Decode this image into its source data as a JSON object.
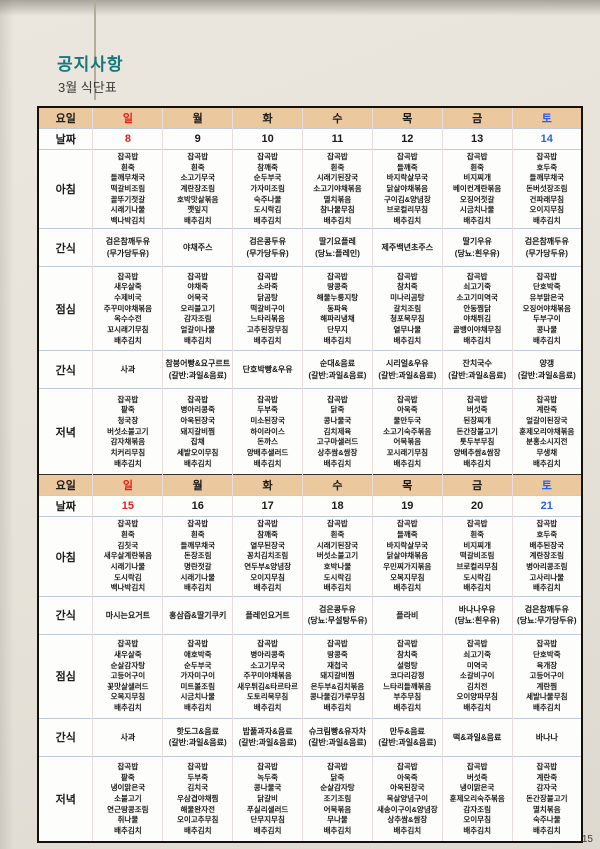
{
  "page": {
    "title": "공지사항",
    "subtitle": "3월 식단표",
    "page_number": "15"
  },
  "colors": {
    "accent_teal": "#15787a",
    "sunday_red": "#e5211c",
    "saturday_blue": "#2563eb",
    "header_tan": "#ecc89e"
  },
  "table": {
    "day_header_label": "요일",
    "date_header_label": "날짜",
    "days": [
      "일",
      "월",
      "화",
      "수",
      "목",
      "금",
      "토"
    ],
    "weeks": [
      {
        "dates": [
          "8",
          "9",
          "10",
          "11",
          "12",
          "13",
          "14"
        ],
        "meals": [
          {
            "label": "아침",
            "type": "meal",
            "cells": [
              [
                "잡곡밥",
                "흰죽",
                "들깨무채국",
                "떡갈비조림",
                "꼴뚜기젓갈",
                "시래기나물",
                "백나박김치"
              ],
              [
                "잡곡밥",
                "흰죽",
                "소고기무국",
                "계란장조림",
                "호박맛살볶음",
                "깻잎지",
                "배추김치"
              ],
              [
                "잡곡밥",
                "참깨죽",
                "순두부국",
                "가자미조림",
                "숙주나물",
                "도시락김",
                "배추김치"
              ],
              [
                "잡곡밥",
                "흰죽",
                "시래기된장국",
                "소고기야채볶음",
                "멸치볶음",
                "참나물무침",
                "배추김치"
              ],
              [
                "잡곡밥",
                "들깨죽",
                "바지락살무국",
                "닭살야채볶음",
                "구이김&양념장",
                "브로컬리무침",
                "배추김치"
              ],
              [
                "잡곡밥",
                "흰죽",
                "비지찌개",
                "베이컨계란볶음",
                "오징어젓갈",
                "시금치나물",
                "배추김치"
              ],
              [
                "잡곡밥",
                "호두죽",
                "들깨무채국",
                "돈버섯장조림",
                "건파래무침",
                "오이지무침",
                "배추김치"
              ]
            ]
          },
          {
            "label": "간식",
            "type": "snack",
            "cells": [
              [
                "검은참깨두유",
                "(무가당두유)"
              ],
              [
                "야채주스"
              ],
              [
                "검은콩두유",
                "(무가당두유)"
              ],
              [
                "딸기요플레",
                "(당뇨:플레인)"
              ],
              [
                "제주백년초주스"
              ],
              [
                "딸기우유",
                "(당뇨:흰우유)"
              ],
              [
                "검은참깨두유",
                "(무가당두유)"
              ]
            ]
          },
          {
            "label": "점심",
            "type": "meal",
            "cells": [
              [
                "잡곡밥",
                "새우살죽",
                "수제비국",
                "주꾸미야채볶음",
                "옥수수전",
                "꼬시래기무침",
                "배추김치"
              ],
              [
                "잡곡밥",
                "야채죽",
                "어묵국",
                "오리불고기",
                "감자조림",
                "얼갈이나물",
                "배추김치"
              ],
              [
                "잡곡밥",
                "소라죽",
                "닭곰탕",
                "떡갈비구이",
                "느타리볶음",
                "고추된장무침",
                "배추김치"
              ],
              [
                "잡곡밥",
                "땅콩죽",
                "해물누룽지탕",
                "동파육",
                "해파리냉채",
                "단무지",
                "배추김치"
              ],
              [
                "잡곡밥",
                "참치죽",
                "미나리곰탕",
                "갈치조림",
                "청포묵무침",
                "열무나물",
                "배추김치"
              ],
              [
                "잡곡밥",
                "쇠고기죽",
                "소고기미역국",
                "안동찜닭",
                "야채튀김",
                "골뱅이야채무침",
                "배추김치"
              ],
              [
                "잡곡밥",
                "단호박죽",
                "유부맑은국",
                "오징어야채볶음",
                "두부구이",
                "콩나물",
                "배추김치"
              ]
            ]
          },
          {
            "label": "간식",
            "type": "snack",
            "cells": [
              [
                "사과"
              ],
              [
                "참붕어빵&요구르트",
                "(갈반:과일&음료)"
              ],
              [
                "단호박빵&우유"
              ],
              [
                "순대&음료",
                "(갈반:과일&음료)"
              ],
              [
                "시리얼&우유",
                "(갈반:과일&음료)"
              ],
              [
                "잔치국수",
                "(갈반:과일&음료)"
              ],
              [
                "양갱",
                "(갈반:과일&음료)"
              ]
            ]
          },
          {
            "label": "저녁",
            "type": "meal",
            "cells": [
              [
                "잡곡밥",
                "팥죽",
                "청국장",
                "버섯소불고기",
                "감자채볶음",
                "치커리무침",
                "배추김치"
              ],
              [
                "잡곡밥",
                "병아리콩죽",
                "아욱된장국",
                "돼지갈비찜",
                "잡채",
                "세발오이무침",
                "배추김치"
              ],
              [
                "잡곡밥",
                "두부죽",
                "미소된장국",
                "하이라이스",
                "돈까스",
                "양배추샐러드",
                "배추김치"
              ],
              [
                "잡곡밥",
                "닭죽",
                "콩나물국",
                "김치제육",
                "고구마샐러드",
                "상추쌈&쌈장",
                "배추김치"
              ],
              [
                "잡곡밥",
                "아욱죽",
                "물만두국",
                "소고기숙주볶음",
                "어묵볶음",
                "꼬시래기무침",
                "배추김치"
              ],
              [
                "잡곡밥",
                "버섯죽",
                "된장찌개",
                "돈간장불고기",
                "톳두부무침",
                "양배추쌈&쌈장",
                "배추김치"
              ],
              [
                "잡곡밥",
                "계란죽",
                "얼갈이된장국",
                "훈제오리야채볶음",
                "분홍소시지전",
                "무생채",
                "배추김치"
              ]
            ]
          }
        ]
      },
      {
        "dates": [
          "15",
          "16",
          "17",
          "18",
          "19",
          "20",
          "21"
        ],
        "meals": [
          {
            "label": "아침",
            "type": "meal",
            "cells": [
              [
                "잡곡밥",
                "흰죽",
                "김칫국",
                "새우살계란볶음",
                "시래기나물",
                "도시락김",
                "백나박김치"
              ],
              [
                "잡곡밥",
                "흰죽",
                "들깨무채국",
                "돈장조림",
                "명란젓갈",
                "시래기나물",
                "배추김치"
              ],
              [
                "잡곡밥",
                "참깨죽",
                "열무된장국",
                "꽁치김치조림",
                "연두부&양념장",
                "오이지무침",
                "배추김치"
              ],
              [
                "잡곡밥",
                "흰죽",
                "시래기된장국",
                "버섯소불고기",
                "호박나물",
                "도시락김",
                "배추김치"
              ],
              [
                "잡곡밥",
                "들깨죽",
                "바지락살무국",
                "닭살야채볶음",
                "우민찌가지볶음",
                "오복지무침",
                "배추김치"
              ],
              [
                "잡곡밥",
                "흰죽",
                "비지찌개",
                "떡갈비조림",
                "브로컬리무침",
                "도시락김",
                "배추김치"
              ],
              [
                "잡곡밥",
                "호두죽",
                "배추된장국",
                "계란장조림",
                "병아리콩조림",
                "고사리나물",
                "배추김치"
              ]
            ]
          },
          {
            "label": "간식",
            "type": "snack",
            "cells": [
              [
                "마시는요거트"
              ],
              [
                "홍삼즙&딸기쿠키"
              ],
              [
                "플레인요거트"
              ],
              [
                "검은콩두유",
                "(당뇨:무설탕두유)"
              ],
              [
                "플라비"
              ],
              [
                "바나나우유",
                "(당뇨:흰우유)"
              ],
              [
                "검은참깨두유",
                "(당뇨:무가당두유)"
              ]
            ]
          },
          {
            "label": "점심",
            "type": "meal",
            "cells": [
              [
                "잡곡밥",
                "새우살죽",
                "순살감자탕",
                "고등어구이",
                "꽃맛살샐러드",
                "오복지무침",
                "배추김치"
              ],
              [
                "잡곡밥",
                "애호박죽",
                "순두부국",
                "가자미구이",
                "미트볼조림",
                "시금치나물",
                "배추김치"
              ],
              [
                "잡곡밥",
                "병아리콩죽",
                "소고기무국",
                "주꾸미야채볶음",
                "새우튀김&타르타르",
                "도토리묵무침",
                "배추김치"
              ],
              [
                "잡곡밥",
                "땅콩죽",
                "재첩국",
                "돼지갈비찜",
                "온두부&김치볶음",
                "콩나물김가루무침",
                "배추김치"
              ],
              [
                "잡곡밥",
                "참치죽",
                "설렁탕",
                "코다리강정",
                "느타리들깨볶음",
                "부추무침",
                "배추김치"
              ],
              [
                "잡곡밥",
                "쇠고기죽",
                "미역국",
                "소갈비구이",
                "김치전",
                "오이양파무침",
                "배추김치"
              ],
              [
                "잡곡밥",
                "단호박죽",
                "육개장",
                "고등어구이",
                "계란찜",
                "세발나물무침",
                "배추김치"
              ]
            ]
          },
          {
            "label": "간식",
            "type": "snack",
            "cells": [
              [
                "사과"
              ],
              [
                "핫도그&음료",
                "(갈반:과일&음료)"
              ],
              [
                "밥풀과자&음료",
                "(갈반:과일&음료)"
              ],
              [
                "슈크림빵&유자차",
                "(갈반:과일&음료)"
              ],
              [
                "만두&음료",
                "(갈반:과일&음료)"
              ],
              [
                "떡&과일&음료"
              ],
              [
                "바나나"
              ]
            ]
          },
          {
            "label": "저녁",
            "type": "meal",
            "cells": [
              [
                "잡곡밥",
                "팥죽",
                "냉이맑은국",
                "소불고기",
                "연근땅콩조림",
                "취나물",
                "배추김치"
              ],
              [
                "잡곡밥",
                "두부죽",
                "김치국",
                "우삼겹야채찜",
                "해물완자전",
                "오이고추무침",
                "배추김치"
              ],
              [
                "잡곡밥",
                "녹두죽",
                "콩나물국",
                "닭갈비",
                "푸실리샐러드",
                "단무지무침",
                "배추김치"
              ],
              [
                "잡곡밥",
                "닭죽",
                "순살감자탕",
                "조기조림",
                "어묵볶음",
                "무나물",
                "배추김치"
              ],
              [
                "잡곡밥",
                "아욱죽",
                "아욱된장국",
                "목살양념구이",
                "새송이구이&양념장",
                "상추쌈&쌈장",
                "배추김치"
              ],
              [
                "잡곡밥",
                "버섯죽",
                "냉이맑은국",
                "훈제오리숙주볶음",
                "감자조림",
                "오이무침",
                "배추김치"
              ],
              [
                "잡곡밥",
                "계란죽",
                "감자국",
                "돈간장불고기",
                "멸치볶음",
                "숙주나물",
                "배추김치"
              ]
            ]
          }
        ]
      }
    ]
  }
}
